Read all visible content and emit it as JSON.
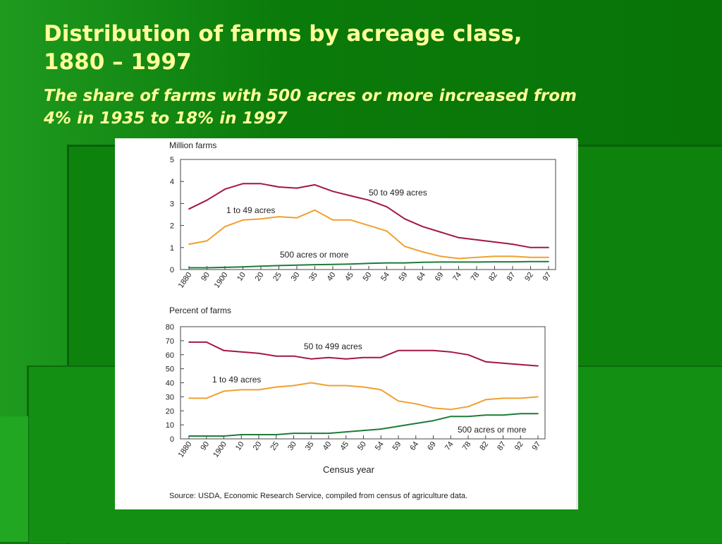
{
  "slide": {
    "title_line1": "Distribution of farms by acreage class,",
    "title_line2": "1880 – 1997",
    "subtitle_line1": "The share of farms with 500 acres or more increased from",
    "subtitle_line2": "4% in 1935 to 18% in 1997"
  },
  "colors": {
    "series_50_499": "#a3164a",
    "series_1_49": "#f0a030",
    "series_500_plus": "#1e7b3a"
  },
  "chart_data": [
    {
      "type": "line",
      "ylabel": "Million farms",
      "ylim": [
        0,
        5
      ],
      "yticks": [
        0,
        1,
        2,
        3,
        4,
        5
      ],
      "categories": [
        "1880",
        "90",
        "1900",
        "10",
        "20",
        "25",
        "30",
        "35",
        "40",
        "45",
        "50",
        "54",
        "59",
        "64",
        "69",
        "74",
        "78",
        "82",
        "87",
        "92",
        "97"
      ],
      "series": [
        {
          "name": "50 to 499 acres",
          "color_key": "series_50_499",
          "values": [
            2.75,
            3.15,
            3.65,
            3.9,
            3.9,
            3.75,
            3.7,
            3.85,
            3.55,
            3.35,
            3.15,
            2.85,
            2.3,
            1.95,
            1.7,
            1.45,
            1.35,
            1.25,
            1.15,
            1.0,
            1.0
          ]
        },
        {
          "name": "1 to 49 acres",
          "color_key": "series_1_49",
          "values": [
            1.15,
            1.3,
            1.95,
            2.25,
            2.3,
            2.4,
            2.35,
            2.7,
            2.25,
            2.25,
            2.0,
            1.75,
            1.05,
            0.8,
            0.6,
            0.5,
            0.55,
            0.6,
            0.6,
            0.55,
            0.55
          ]
        },
        {
          "name": "500 acres or more",
          "color_key": "series_500_plus",
          "values": [
            0.08,
            0.08,
            0.1,
            0.12,
            0.15,
            0.18,
            0.2,
            0.22,
            0.23,
            0.25,
            0.28,
            0.3,
            0.3,
            0.33,
            0.34,
            0.34,
            0.34,
            0.35,
            0.35,
            0.36,
            0.36
          ]
        }
      ]
    },
    {
      "type": "line",
      "ylabel": "Percent of farms",
      "xlabel": "Census year",
      "ylim": [
        0,
        80
      ],
      "yticks": [
        0,
        10,
        20,
        30,
        40,
        50,
        60,
        70,
        80
      ],
      "categories": [
        "1880",
        "90",
        "1900",
        "10",
        "20",
        "25",
        "30",
        "35",
        "40",
        "45",
        "50",
        "54",
        "59",
        "64",
        "69",
        "74",
        "78",
        "82",
        "87",
        "92",
        "97"
      ],
      "series": [
        {
          "name": "50 to 499 acres",
          "color_key": "series_50_499",
          "values": [
            69,
            69,
            63,
            62,
            61,
            59,
            59,
            57,
            58,
            57,
            58,
            58,
            63,
            63,
            63,
            62,
            60,
            55,
            54,
            53,
            52
          ]
        },
        {
          "name": "1 to 49 acres",
          "color_key": "series_1_49",
          "values": [
            29,
            29,
            34,
            35,
            35,
            37,
            38,
            40,
            38,
            38,
            37,
            35,
            27,
            25,
            22,
            21,
            23,
            28,
            29,
            29,
            30
          ]
        },
        {
          "name": "500 acres or more",
          "color_key": "series_500_plus",
          "values": [
            2,
            2,
            2,
            3,
            3,
            3,
            4,
            4,
            4,
            5,
            6,
            7,
            9,
            11,
            13,
            16,
            16,
            17,
            17,
            18,
            18
          ]
        }
      ]
    }
  ],
  "source_note": "Source: USDA, Economic Research Service, compiled from census of agriculture data."
}
